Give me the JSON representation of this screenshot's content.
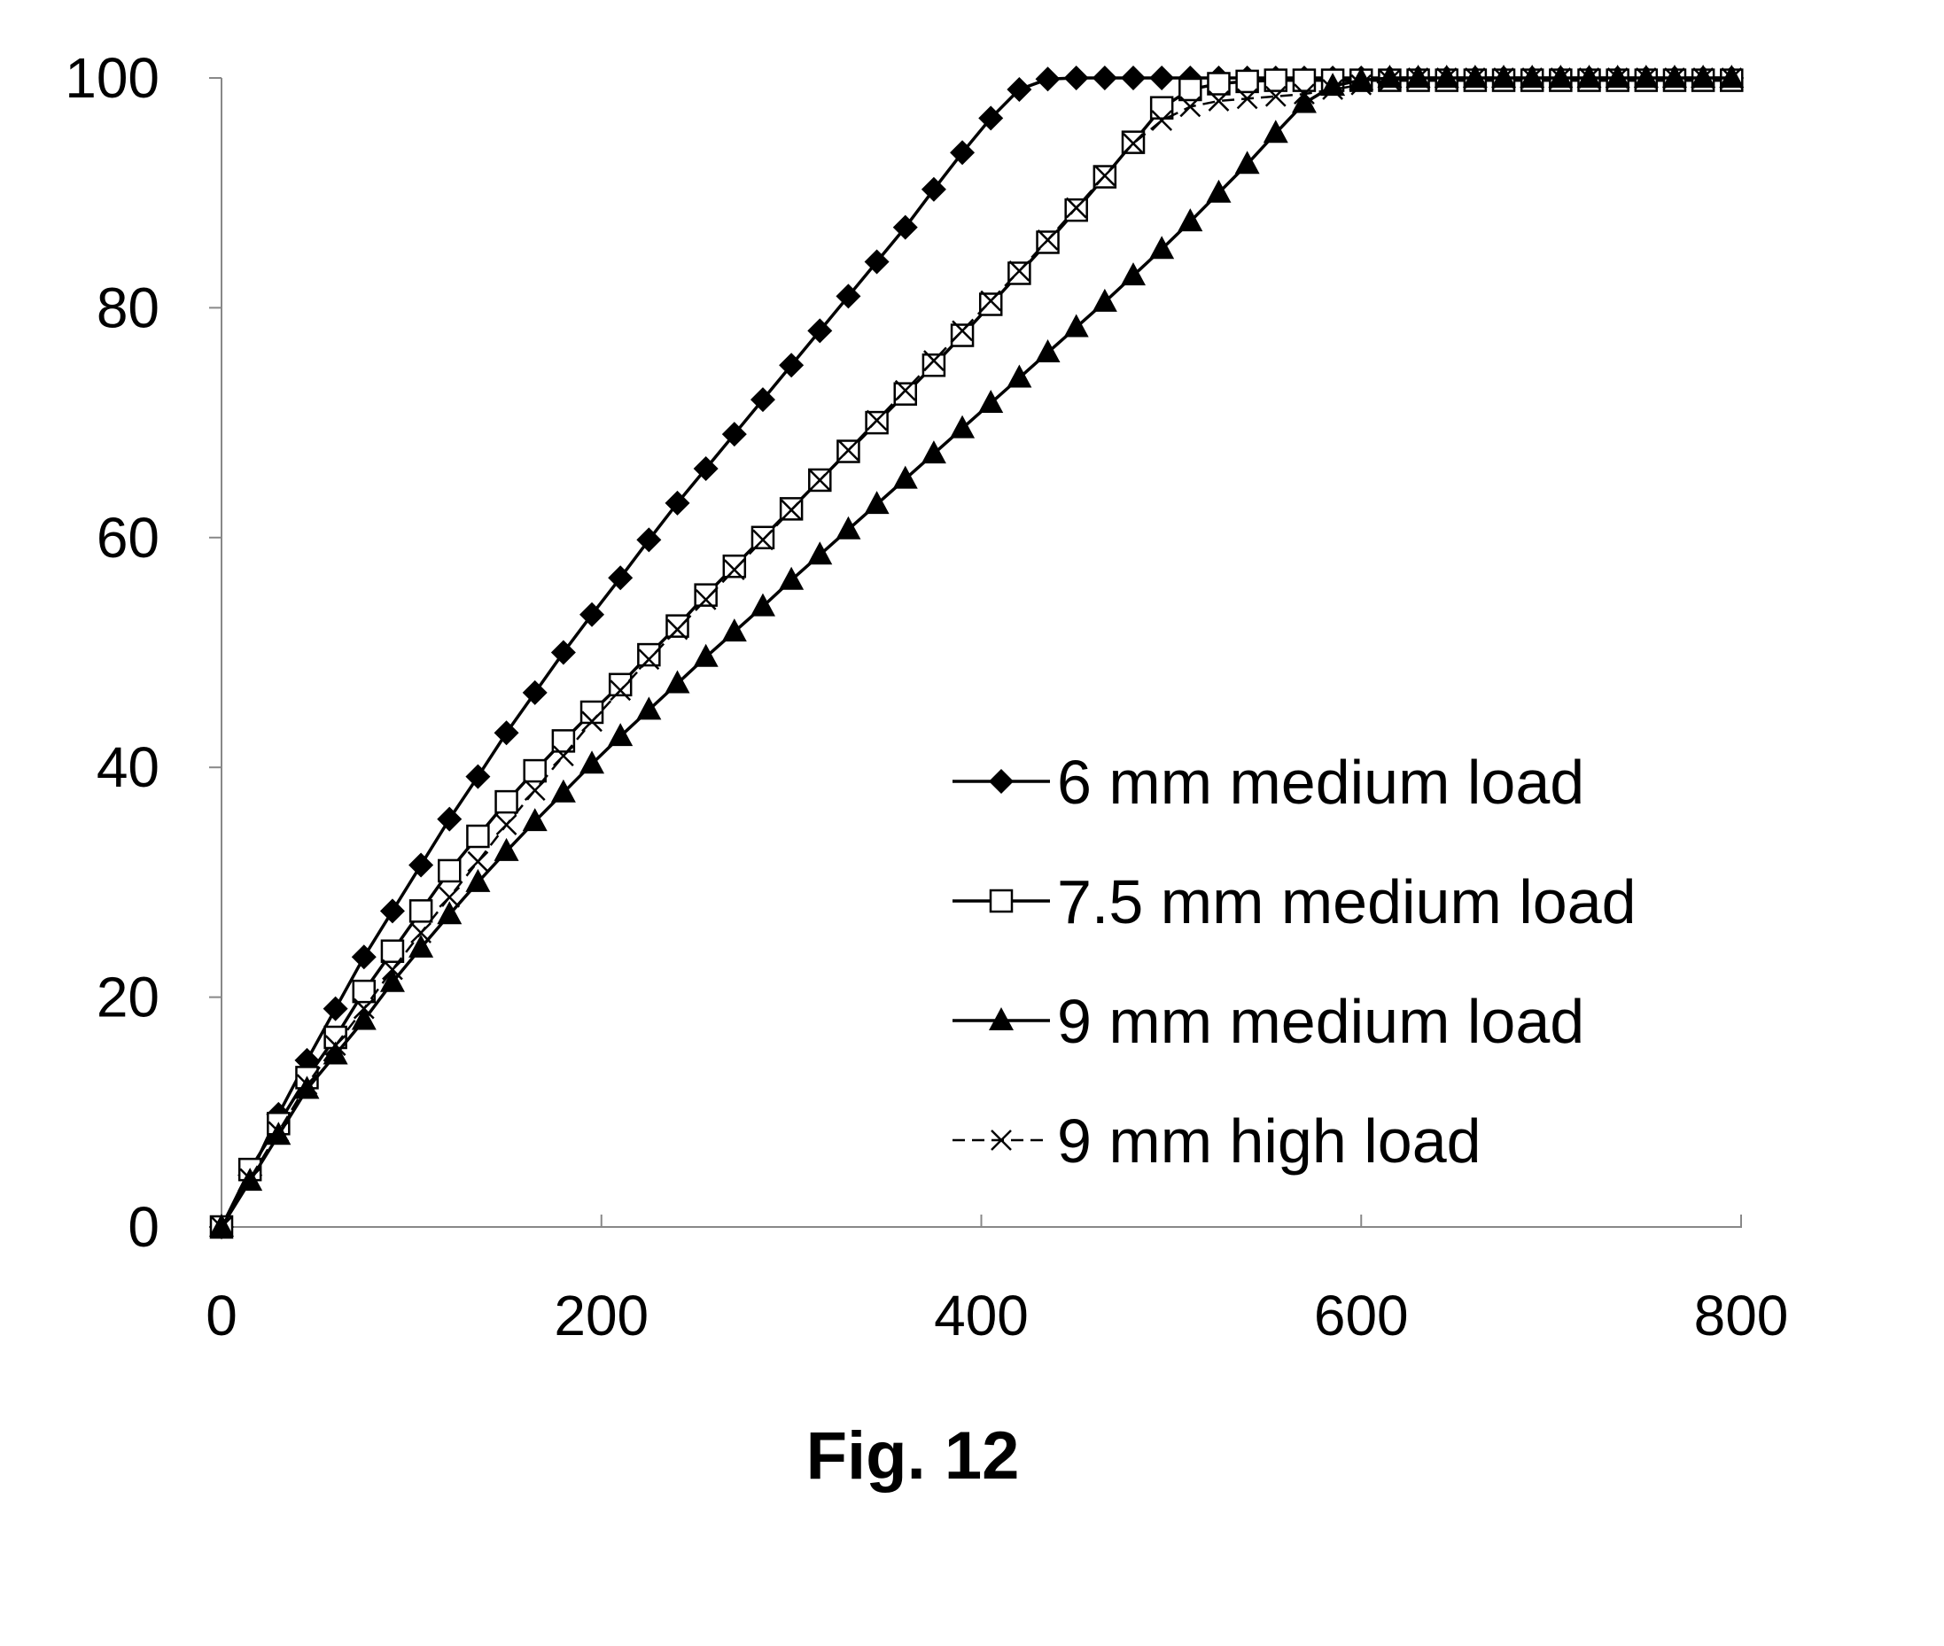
{
  "figure": {
    "caption": "Fig. 12"
  },
  "chart_data": {
    "type": "line",
    "xlim": [
      0,
      800
    ],
    "ylim": [
      0,
      100
    ],
    "x_ticks": [
      "0",
      "200",
      "400",
      "600",
      "800"
    ],
    "y_ticks": [
      "0",
      "20",
      "40",
      "60",
      "80",
      "100"
    ],
    "grid": false,
    "legend_position": "lower-right",
    "series": [
      {
        "name": "6 mm medium load",
        "marker": "diamond",
        "line": "solid",
        "x": [
          0,
          15,
          30,
          45,
          60,
          75,
          90,
          105,
          120,
          135,
          150,
          165,
          180,
          195,
          210,
          225,
          240,
          255,
          270,
          285,
          300,
          315,
          330,
          345,
          360,
          375,
          390,
          405,
          420,
          435,
          450,
          465,
          480,
          495,
          510,
          525,
          540,
          555,
          570,
          585,
          600,
          615,
          630,
          645,
          660,
          675,
          690,
          705,
          720,
          735,
          750,
          765,
          780,
          795
        ],
        "y": [
          0,
          4.5,
          9.8,
          14.5,
          19,
          23.5,
          27.5,
          31.5,
          35.5,
          39.2,
          43,
          46.5,
          50,
          53.3,
          56.5,
          59.8,
          63,
          66,
          69,
          72,
          75,
          78,
          81,
          84,
          87,
          90.3,
          93.5,
          96.5,
          99,
          99.9,
          100,
          100,
          100,
          100,
          100,
          100,
          100,
          100,
          100,
          100,
          100,
          100,
          100,
          100,
          100,
          100,
          100,
          100,
          100,
          100,
          100,
          100,
          100,
          100
        ]
      },
      {
        "name": "7.5 mm medium load",
        "marker": "square",
        "line": "solid",
        "x": [
          0,
          15,
          30,
          45,
          60,
          75,
          90,
          105,
          120,
          135,
          150,
          165,
          180,
          195,
          210,
          225,
          240,
          255,
          270,
          285,
          300,
          315,
          330,
          345,
          360,
          375,
          390,
          405,
          420,
          435,
          450,
          465,
          480,
          495,
          510,
          525,
          540,
          555,
          570,
          585,
          600,
          615,
          630,
          645,
          660,
          675,
          690,
          705,
          720,
          735,
          750,
          765,
          780,
          795
        ],
        "y": [
          0,
          5,
          9,
          13,
          16.5,
          20.5,
          24,
          27.5,
          31,
          34,
          37,
          39.7,
          42.3,
          44.8,
          47.2,
          49.8,
          52.3,
          55,
          57.5,
          60,
          62.5,
          65,
          67.5,
          70,
          72.5,
          75,
          77.6,
          80.3,
          83,
          85.7,
          88.5,
          91.4,
          94.4,
          97.4,
          99,
          99.5,
          99.7,
          99.8,
          99.8,
          99.8,
          99.8,
          99.8,
          99.8,
          99.8,
          99.8,
          99.8,
          99.8,
          99.8,
          99.8,
          99.8,
          99.8,
          99.8,
          99.8,
          99.8
        ]
      },
      {
        "name": "9 mm medium load",
        "marker": "triangle",
        "line": "solid",
        "x": [
          0,
          15,
          30,
          45,
          60,
          75,
          90,
          105,
          120,
          135,
          150,
          165,
          180,
          195,
          210,
          225,
          240,
          255,
          270,
          285,
          300,
          315,
          330,
          345,
          360,
          375,
          390,
          405,
          420,
          435,
          450,
          465,
          480,
          495,
          510,
          525,
          540,
          555,
          570,
          585,
          600,
          615,
          630,
          645,
          660,
          675,
          690,
          705,
          720,
          735,
          750,
          765,
          780,
          795
        ],
        "y": [
          0,
          4,
          8,
          12,
          15,
          18,
          21.3,
          24.3,
          27.2,
          30,
          32.7,
          35.3,
          37.8,
          40.3,
          42.7,
          45,
          47.3,
          49.6,
          51.8,
          54,
          56.3,
          58.5,
          60.7,
          62.9,
          65.1,
          67.3,
          69.5,
          71.7,
          73.9,
          76.1,
          78.3,
          80.5,
          82.8,
          85.1,
          87.5,
          90,
          92.5,
          95.2,
          97.8,
          99.3,
          99.8,
          100,
          100,
          100,
          100,
          100,
          100,
          100,
          100,
          100,
          100,
          100,
          100,
          100
        ]
      },
      {
        "name": "9 mm high load",
        "marker": "x",
        "line": "dashed",
        "x": [
          0,
          15,
          30,
          45,
          60,
          75,
          90,
          105,
          120,
          135,
          150,
          165,
          180,
          195,
          210,
          225,
          240,
          255,
          270,
          285,
          300,
          315,
          330,
          345,
          360,
          375,
          390,
          405,
          420,
          435,
          450,
          465,
          480,
          495,
          510,
          525,
          540,
          555,
          570,
          585,
          600,
          615,
          630,
          645,
          660,
          675,
          690,
          705,
          720,
          735,
          750,
          765,
          780,
          795
        ],
        "y": [
          0,
          4.2,
          8.3,
          12.4,
          15.8,
          19,
          22.4,
          25.6,
          28.7,
          31.8,
          35,
          38,
          41,
          44,
          46.7,
          49.4,
          52,
          54.6,
          57.2,
          59.8,
          62.4,
          65,
          67.6,
          70.2,
          72.8,
          75.4,
          78,
          80.6,
          83.2,
          85.9,
          88.7,
          91.5,
          94.3,
          96.3,
          97.5,
          98,
          98.2,
          98.4,
          98.6,
          99,
          99.4,
          99.8,
          100,
          100,
          100,
          100,
          100,
          100,
          100,
          100,
          100,
          100,
          100,
          100
        ]
      }
    ]
  }
}
